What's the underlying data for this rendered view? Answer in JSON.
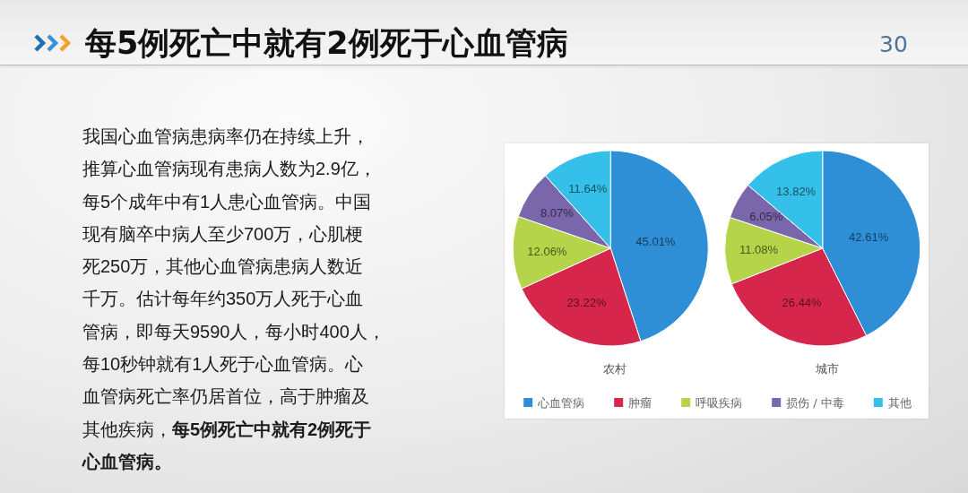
{
  "chart_data": [
    {
      "type": "other",
      "title": "每5例死亡中就有2例死于心血管病",
      "annotations": [
        "30",
        "我国心血管病患病率仍在持续上升，推算心血管病现有患病人数为2.9亿，每5个成年中有1人患心血管病。中国现有脑卒中病人至少700万，心肌梗死250万，其他心血管病患病人数近千万。估计每年约350万人死于心血管病，即每天9590人，每小时400人，每10秒钟就有1人死于心血管病。心血管病死亡率仍居首位，高于肿瘤及",
        "其他疾病，",
        "每5例死亡中就有2例死于",
        "心血管病。"
      ]
    },
    {
      "type": "pie",
      "categories": [
        "心血管病",
        "肿瘤",
        "呼吸疾病",
        "损伤 / 中毒",
        "其他"
      ],
      "colors": [
        "#2f8fd6",
        "#d7264c",
        "#b5d44a",
        "#7a66ab",
        "#35c0ea"
      ],
      "legend": "bottom",
      "series": [
        {
          "name": "农村",
          "values": [
            45.01,
            23.22,
            12.06,
            8.07,
            11.64
          ],
          "value_labels": [
            "45.01%",
            "23.22%",
            "12.06%",
            "8.07%",
            "11.64%"
          ]
        },
        {
          "name": "城市",
          "values": [
            42.61,
            26.44,
            11.08,
            6.05,
            13.82
          ],
          "value_labels": [
            "42.61%",
            "26.44%",
            "11.08%",
            "6.05%",
            "13.82%"
          ]
        }
      ]
    }
  ]
}
